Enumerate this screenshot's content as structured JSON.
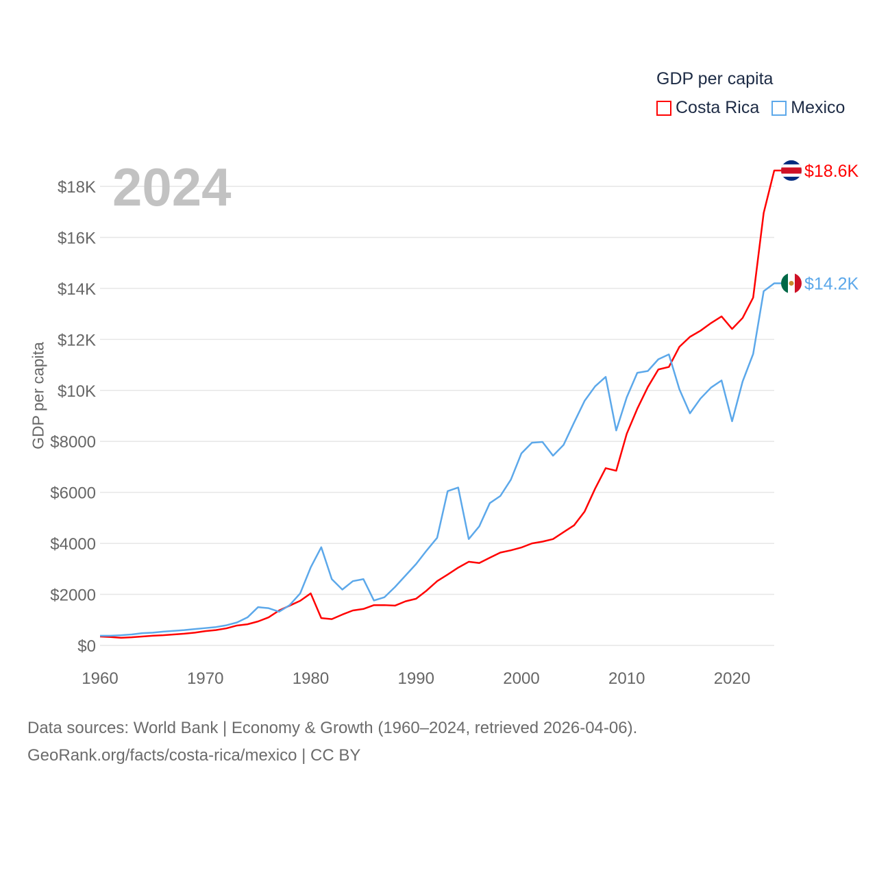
{
  "chart_data": {
    "type": "line",
    "title": "GDP per capita",
    "highlight_year": "2024",
    "xlabel": "",
    "ylabel": "GDP per capita",
    "xlim": [
      1960,
      2024
    ],
    "ylim": [
      0,
      18600
    ],
    "x_ticks": [
      1960,
      1970,
      1980,
      1990,
      2000,
      2010,
      2020
    ],
    "x_tick_labels": [
      "1960",
      "1970",
      "1980",
      "1990",
      "2000",
      "2010",
      "2020"
    ],
    "y_ticks": [
      0,
      2000,
      4000,
      6000,
      8000,
      10000,
      12000,
      14000,
      16000,
      18000
    ],
    "y_tick_labels": [
      "$0",
      "$2000",
      "$4000",
      "$6000",
      "$8000",
      "$10K",
      "$12K",
      "$14K",
      "$16K",
      "$18K"
    ],
    "grid": true,
    "legend_position": "top-right",
    "x": [
      1960,
      1961,
      1962,
      1963,
      1964,
      1965,
      1966,
      1967,
      1968,
      1969,
      1970,
      1971,
      1972,
      1973,
      1974,
      1975,
      1976,
      1977,
      1978,
      1979,
      1980,
      1981,
      1982,
      1983,
      1984,
      1985,
      1986,
      1987,
      1988,
      1989,
      1990,
      1991,
      1992,
      1993,
      1994,
      1995,
      1996,
      1997,
      1998,
      1999,
      2000,
      2001,
      2002,
      2003,
      2004,
      2005,
      2006,
      2007,
      2008,
      2009,
      2010,
      2011,
      2012,
      2013,
      2014,
      2015,
      2016,
      2017,
      2018,
      2019,
      2020,
      2021,
      2022,
      2023,
      2024
    ],
    "series": [
      {
        "name": "Costa Rica",
        "color": "#ff0000",
        "end_label": "$18.6K",
        "flag": "costa-rica-flag",
        "values": [
          350,
          330,
          300,
          320,
          350,
          380,
          400,
          430,
          460,
          500,
          560,
          600,
          670,
          780,
          830,
          940,
          1100,
          1370,
          1560,
          1750,
          2040,
          1070,
          1030,
          1210,
          1370,
          1430,
          1580,
          1580,
          1560,
          1730,
          1830,
          2150,
          2520,
          2780,
          3050,
          3280,
          3230,
          3440,
          3640,
          3730,
          3840,
          4000,
          4070,
          4170,
          4440,
          4710,
          5250,
          6150,
          6950,
          6850,
          8300,
          9280,
          10130,
          10820,
          10920,
          11710,
          12100,
          12340,
          12640,
          12900,
          12410,
          12840,
          13640,
          16960,
          18620
        ]
      },
      {
        "name": "Mexico",
        "color": "#5ca8ea",
        "end_label": "$14.2K",
        "flag": "mexico-flag",
        "values": [
          380,
          380,
          400,
          430,
          480,
          500,
          540,
          570,
          600,
          640,
          680,
          720,
          790,
          900,
          1100,
          1500,
          1460,
          1320,
          1580,
          2040,
          3060,
          3850,
          2600,
          2190,
          2520,
          2600,
          1760,
          1890,
          2290,
          2740,
          3190,
          3720,
          4220,
          6050,
          6190,
          4170,
          4670,
          5580,
          5860,
          6500,
          7530,
          7950,
          7980,
          7440,
          7860,
          8740,
          9590,
          10160,
          10530,
          8430,
          9730,
          10690,
          10760,
          11220,
          11410,
          10040,
          9100,
          9680,
          10110,
          10390,
          8790,
          10350,
          11430,
          13890,
          14200
        ]
      }
    ]
  },
  "footer": {
    "line1": "Data sources: World Bank | Economy & Growth (1960–2024, retrieved 2026-04-06).",
    "line2": "GeoRank.org/facts/costa-rica/mexico | CC BY"
  }
}
